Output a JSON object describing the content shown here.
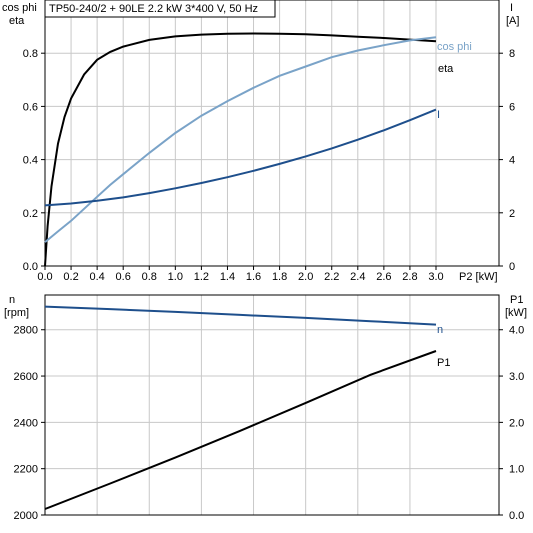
{
  "chart_data": [
    {
      "type": "line",
      "title": "TP50-240/2 + 90LE   2.2 kW   3*400 V, 50 Hz",
      "xlabel": "P2 [kW]",
      "xlim": [
        0,
        3.0
      ],
      "xticks": [
        "0.0",
        "0.2",
        "0.4",
        "0.6",
        "0.8",
        "1.0",
        "1.2",
        "1.4",
        "1.6",
        "1.8",
        "2.0",
        "2.2",
        "2.4",
        "2.6",
        "2.8",
        "3.0"
      ],
      "ylabel_left": [
        "cos phi",
        "eta"
      ],
      "ylim_left": [
        0,
        1.0
      ],
      "yticks_left": [
        "0.0",
        "0.2",
        "0.4",
        "0.6",
        "0.8"
      ],
      "ylabel_right": [
        "I",
        "[A]"
      ],
      "ylim_right": [
        0,
        10
      ],
      "yticks_right": [
        "0",
        "2",
        "4",
        "6",
        "8"
      ],
      "grid": true,
      "series": [
        {
          "name": "eta",
          "axis": "left",
          "color": "#000000",
          "x": [
            0.0,
            0.02,
            0.05,
            0.1,
            0.15,
            0.2,
            0.3,
            0.4,
            0.5,
            0.6,
            0.8,
            1.0,
            1.2,
            1.4,
            1.6,
            1.8,
            2.0,
            2.2,
            2.4,
            2.6,
            2.8,
            3.0
          ],
          "y": [
            0.0,
            0.15,
            0.3,
            0.46,
            0.56,
            0.63,
            0.72,
            0.775,
            0.805,
            0.825,
            0.85,
            0.863,
            0.87,
            0.873,
            0.874,
            0.873,
            0.871,
            0.867,
            0.862,
            0.857,
            0.851,
            0.845
          ]
        },
        {
          "name": "cos phi",
          "axis": "left",
          "color": "#7aa3c8",
          "x": [
            0.0,
            0.1,
            0.2,
            0.3,
            0.4,
            0.5,
            0.6,
            0.8,
            1.0,
            1.2,
            1.4,
            1.6,
            1.8,
            2.0,
            2.2,
            2.4,
            2.6,
            2.8,
            3.0
          ],
          "y": [
            0.09,
            0.13,
            0.17,
            0.215,
            0.26,
            0.305,
            0.345,
            0.425,
            0.5,
            0.565,
            0.62,
            0.67,
            0.715,
            0.75,
            0.785,
            0.81,
            0.83,
            0.848,
            0.86
          ]
        },
        {
          "name": "I",
          "axis": "right",
          "color": "#1e4f8c",
          "x": [
            0.0,
            0.2,
            0.4,
            0.6,
            0.8,
            1.0,
            1.2,
            1.4,
            1.6,
            1.8,
            2.0,
            2.2,
            2.4,
            2.6,
            2.8,
            3.0
          ],
          "y": [
            2.28,
            2.35,
            2.45,
            2.58,
            2.74,
            2.92,
            3.12,
            3.34,
            3.58,
            3.84,
            4.12,
            4.42,
            4.75,
            5.1,
            5.48,
            5.88
          ]
        }
      ]
    },
    {
      "type": "line",
      "xlim": [
        0,
        3.0
      ],
      "ylabel_left": [
        "n",
        "[rpm]"
      ],
      "ylim_left": [
        2000,
        2950
      ],
      "yticks_left": [
        "2000",
        "2200",
        "2400",
        "2600",
        "2800"
      ],
      "ylabel_right": [
        "P1",
        "[kW]"
      ],
      "ylim_right": [
        0,
        4.75
      ],
      "yticks_right": [
        "0.0",
        "1.0",
        "2.0",
        "3.0",
        "4.0"
      ],
      "grid": true,
      "series": [
        {
          "name": "n",
          "axis": "left",
          "color": "#1e4f8c",
          "x": [
            0.0,
            0.5,
            1.0,
            1.5,
            2.0,
            2.5,
            3.0
          ],
          "y": [
            2900,
            2889,
            2877,
            2864,
            2851,
            2837,
            2822
          ]
        },
        {
          "name": "P1",
          "axis": "right",
          "color": "#000000",
          "x": [
            0.0,
            0.5,
            1.0,
            1.5,
            2.0,
            2.5,
            3.0
          ],
          "y": [
            0.13,
            0.68,
            1.24,
            1.82,
            2.42,
            3.03,
            3.54
          ]
        }
      ]
    }
  ]
}
